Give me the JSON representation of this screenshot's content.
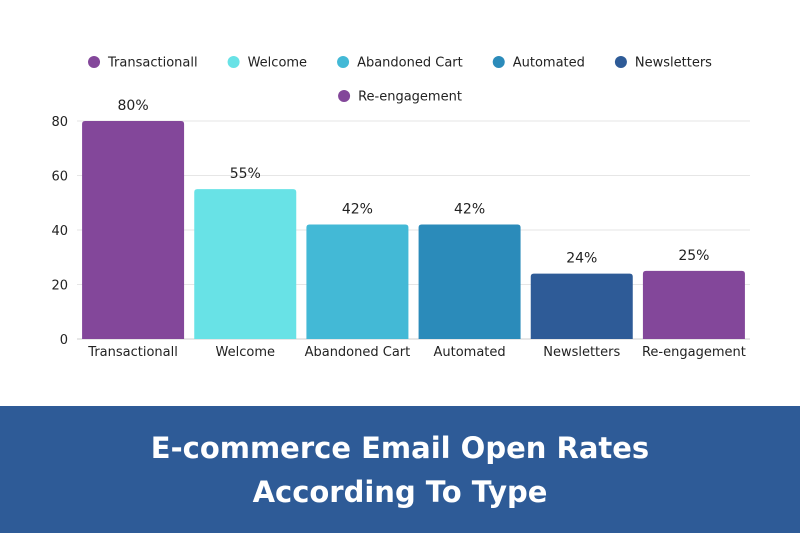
{
  "chart_data": {
    "type": "bar",
    "categories": [
      "Transactionall",
      "Welcome",
      "Abandoned Cart",
      "Automated",
      "Newsletters",
      "Re-engagement"
    ],
    "values": [
      80,
      55,
      42,
      42,
      24,
      25
    ],
    "data_labels": [
      "80%",
      "55%",
      "42%",
      "42%",
      "24%",
      "25%"
    ],
    "colors": [
      "#83479a",
      "#68e2e6",
      "#43b9d6",
      "#2b8bba",
      "#2e5b97",
      "#83479a"
    ],
    "legend": [
      {
        "name": "Transactionall",
        "color": "#83479a"
      },
      {
        "name": "Welcome",
        "color": "#68e2e6"
      },
      {
        "name": "Abandoned Cart",
        "color": "#43b9d6"
      },
      {
        "name": "Automated",
        "color": "#2b8bba"
      },
      {
        "name": "Newsletters",
        "color": "#2e5b97"
      },
      {
        "name": "Re-engagement",
        "color": "#83479a"
      }
    ],
    "legend_position": "top",
    "ylim": [
      0,
      80
    ],
    "yticks": [
      "0",
      "20",
      "40",
      "60",
      "80"
    ],
    "grid": true,
    "xlabel": "",
    "ylabel": ""
  },
  "banner": {
    "line1": "E-commerce Email Open Rates",
    "line2": "According To Type",
    "background": "#2e5b97"
  }
}
